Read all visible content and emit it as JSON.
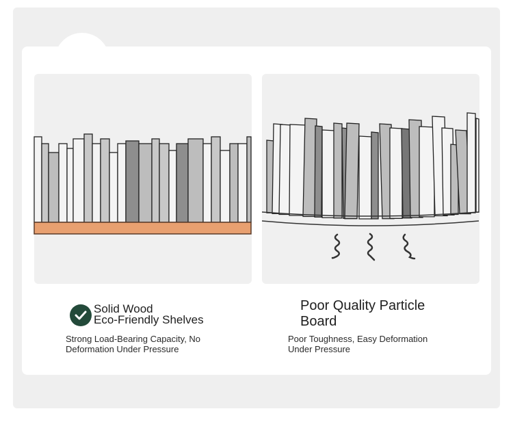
{
  "left": {
    "title_line1": "Solid Wood",
    "title_line2": "Eco-Friendly Shelves",
    "desc_line1": "Strong Load-Bearing Capacity, No",
    "desc_line2": "Deformation Under Pressure",
    "icon": "check-circle-icon",
    "accent": "#234a3a",
    "shelf_color": "#e8a070"
  },
  "right": {
    "title_line1": "Poor Quality Particle",
    "title_line2": "Board",
    "desc_line1": "Poor Toughness, Easy Deformation",
    "desc_line2": "Under Pressure"
  }
}
